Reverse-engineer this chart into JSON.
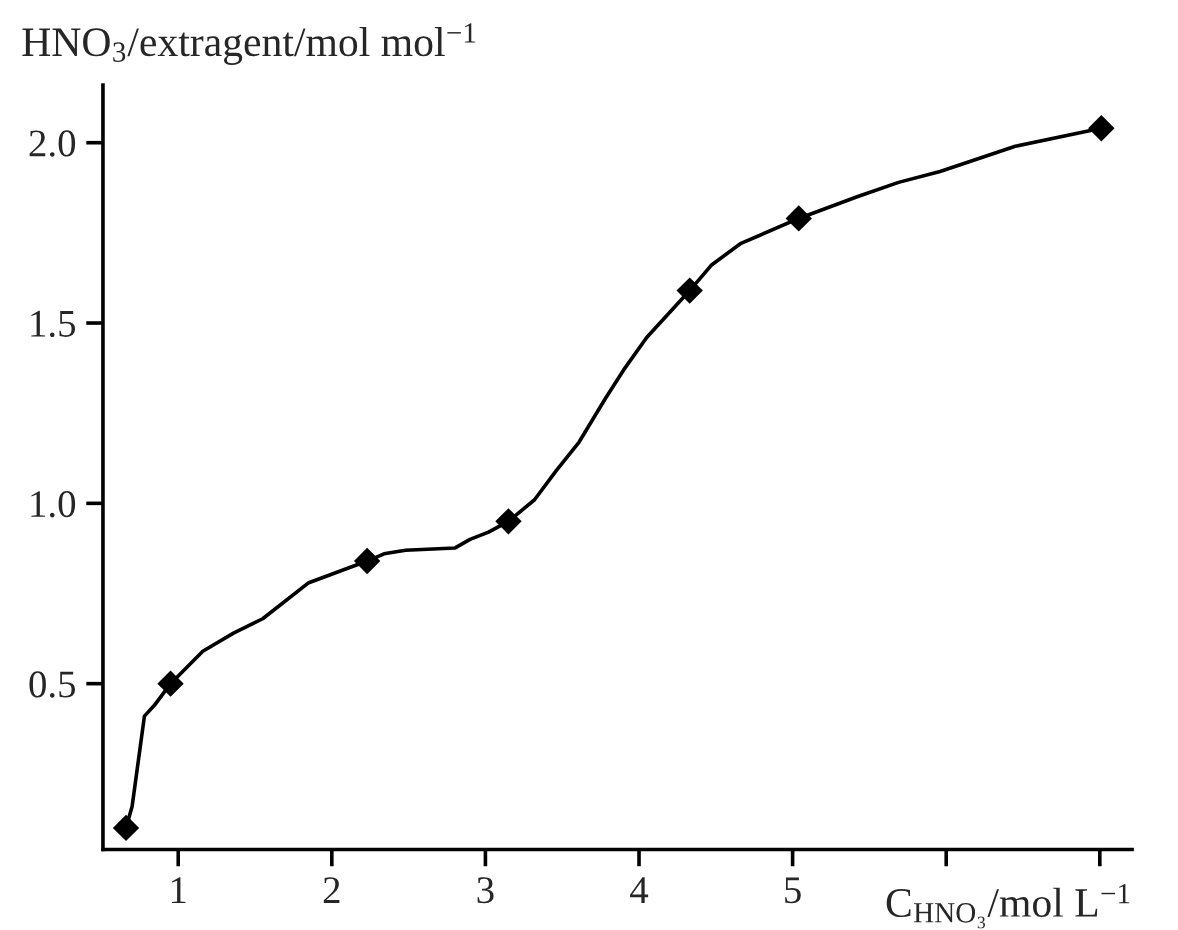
{
  "chart_data": {
    "type": "line",
    "xlabel": "C$_{HNO₃}$/mol L$^{−1}$",
    "ylabel": "HNO$_{3}$/extragent/mol mol$^{−1}$",
    "series": [
      {
        "color": "#000000",
        "marker": "none",
        "x": [
          0.66,
          0.7,
          0.78,
          0.845,
          0.95,
          1.16,
          1.36,
          1.55,
          1.85,
          2.23,
          2.34,
          2.48,
          2.8,
          2.9,
          3.02,
          3.15,
          3.32,
          3.46,
          3.61,
          3.78,
          3.9,
          4.05,
          4.33,
          4.47,
          4.66,
          5.04,
          5.42,
          5.69,
          5.96,
          6.45,
          7.01
        ],
        "values": [
          0.1,
          0.16,
          0.41,
          0.44,
          0.5,
          0.59,
          0.64,
          0.68,
          0.78,
          0.84,
          0.86,
          0.87,
          0.876,
          0.9,
          0.92,
          0.95,
          1.01,
          1.09,
          1.17,
          1.29,
          1.37,
          1.46,
          1.59,
          1.66,
          1.72,
          1.79,
          1.85,
          1.89,
          1.92,
          1.99,
          2.04
        ]
      },
      {
        "type": "scatter",
        "color": "#000000",
        "marker": "diamond",
        "x": [
          0.66,
          0.95,
          2.23,
          3.15,
          4.33,
          5.04,
          7.01
        ],
        "values": [
          0.1,
          0.5,
          0.84,
          0.95,
          1.59,
          1.79,
          2.04
        ]
      }
    ],
    "xlim": [
      0.51,
      7.21
    ],
    "ylim": [
      0.04,
      2.16
    ],
    "xticks": [
      1,
      2,
      3,
      4,
      5,
      {
        "value": 6,
        "label": null
      },
      {
        "value": 7,
        "label": null
      }
    ],
    "yticks": [
      {
        "value": 0.5,
        "label": "0.5"
      },
      {
        "value": 1.0,
        "label": "1.0"
      },
      {
        "value": 1.5,
        "label": "1.5"
      },
      {
        "value": 2.0,
        "label": "2.0"
      }
    ],
    "grid": false,
    "legend": false
  }
}
